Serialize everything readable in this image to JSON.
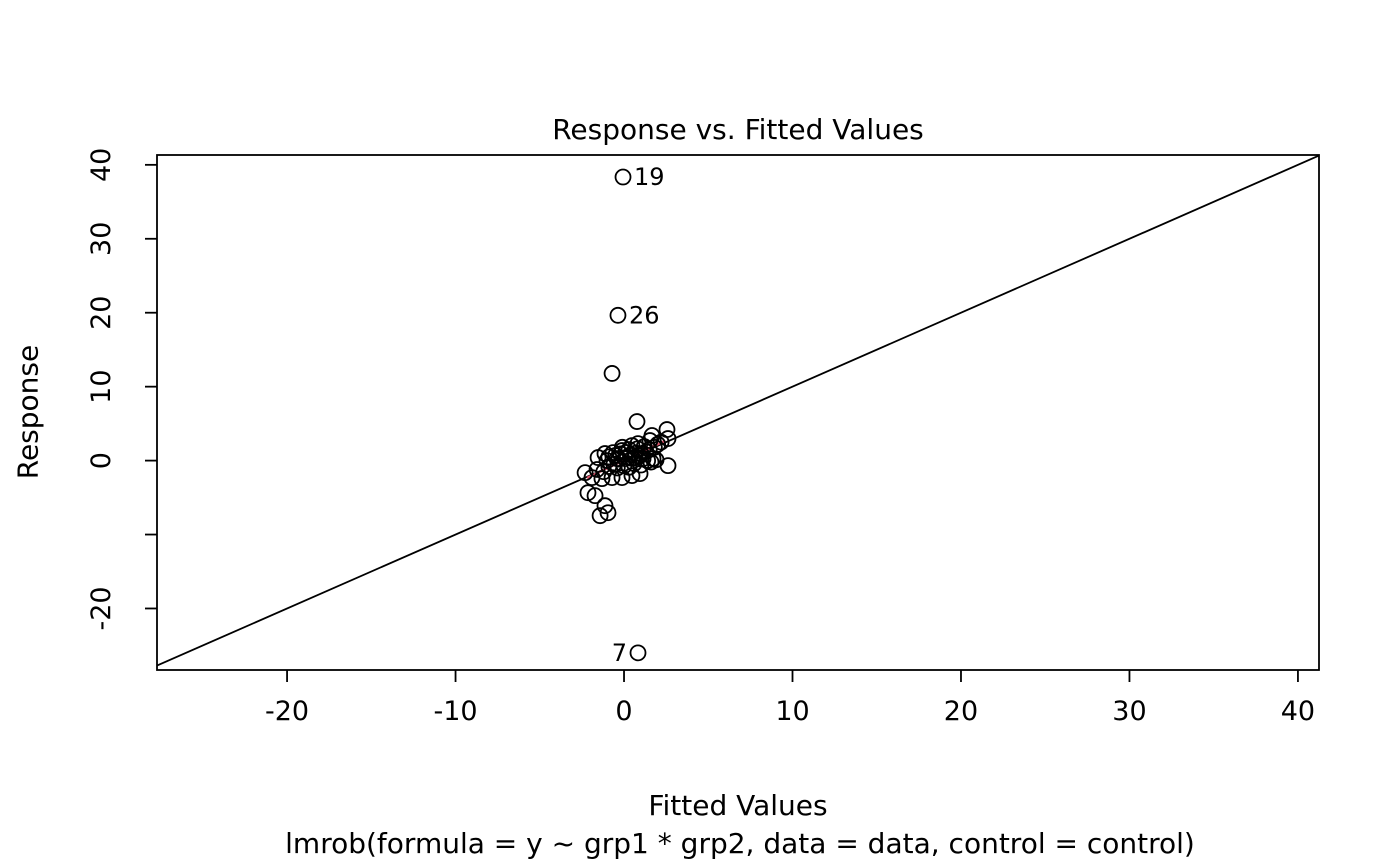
{
  "chart_data": {
    "type": "scatter",
    "title": "Response vs. Fitted Values",
    "xlabel": "Fitted Values",
    "ylabel": "Response",
    "subtitle": "lmrob(formula = y ~ grp1 * grp2, data = data, control = control)",
    "xlim": [
      -27.72,
      41.25
    ],
    "ylim": [
      -28.32,
      41.33
    ],
    "grid": false,
    "legend": "none",
    "x_ticks": [
      {
        "v": -20,
        "label": "-20"
      },
      {
        "v": -10,
        "label": "-10"
      },
      {
        "v": 0,
        "label": "0"
      },
      {
        "v": 10,
        "label": "10"
      },
      {
        "v": 20,
        "label": "20"
      },
      {
        "v": 30,
        "label": "30"
      },
      {
        "v": 40,
        "label": "40"
      }
    ],
    "y_ticks": [
      {
        "v": 40,
        "label": "40"
      },
      {
        "v": 30,
        "label": "30"
      },
      {
        "v": 20,
        "label": "20"
      },
      {
        "v": 10,
        "label": "10"
      },
      {
        "v": 0,
        "label": "0"
      },
      {
        "v": -10,
        "label": ""
      },
      {
        "v": -20,
        "label": "-20"
      }
    ],
    "identity_line": {
      "slope": 1,
      "intercept": 0,
      "color": "#000000"
    },
    "fit_segment": {
      "x1": -2.2,
      "y1": -2.35,
      "x2": 2.45,
      "y2": 2.7,
      "color": "#DF536B"
    },
    "labeled_points": [
      {
        "x": -0.06,
        "y": 38.35,
        "label": "19",
        "side": "right"
      },
      {
        "x": -0.36,
        "y": 19.65,
        "label": "26",
        "side": "right"
      },
      {
        "x": 0.83,
        "y": -26.0,
        "label": "7",
        "side": "left"
      }
    ],
    "points": [
      [
        -0.71,
        11.79
      ],
      [
        0.77,
        5.28
      ],
      [
        1.66,
        3.39
      ],
      [
        2.55,
        4.2
      ],
      [
        2.61,
        2.98
      ],
      [
        1.54,
        2.71
      ],
      [
        0.83,
        2.3
      ],
      [
        0.47,
        2.03
      ],
      [
        -0.12,
        1.36
      ],
      [
        -0.65,
        1.08
      ],
      [
        -1.13,
        0.95
      ],
      [
        -1.54,
        0.41
      ],
      [
        -1.01,
        0.0
      ],
      [
        -0.42,
        0.27
      ],
      [
        0.06,
        0.27
      ],
      [
        0.65,
        0.41
      ],
      [
        1.13,
        0.27
      ],
      [
        1.72,
        0.27
      ],
      [
        2.61,
        -0.68
      ],
      [
        -2.31,
        -1.63
      ],
      [
        -1.9,
        -2.3
      ],
      [
        -1.31,
        -2.44
      ],
      [
        -0.71,
        -2.3
      ],
      [
        -0.12,
        -2.3
      ],
      [
        0.47,
        -2.03
      ],
      [
        0.95,
        -1.76
      ],
      [
        -2.14,
        -4.34
      ],
      [
        -1.72,
        -4.74
      ],
      [
        -1.13,
        -6.1
      ],
      [
        -0.95,
        -7.05
      ],
      [
        -1.42,
        -7.45
      ],
      [
        -0.9,
        0.5
      ],
      [
        -0.5,
        0.7
      ],
      [
        -0.2,
        0.9
      ],
      [
        0.1,
        1.1
      ],
      [
        0.4,
        0.8
      ],
      [
        0.7,
        1.0
      ],
      [
        1.0,
        0.9
      ],
      [
        1.3,
        1.2
      ],
      [
        0.2,
        0.5
      ],
      [
        -0.3,
        0.2
      ],
      [
        0.5,
        0.3
      ],
      [
        0.9,
        0.6
      ],
      [
        1.5,
        1.5
      ],
      [
        1.8,
        1.8
      ],
      [
        2.0,
        2.2
      ],
      [
        1.2,
        1.9
      ],
      [
        0.8,
        1.6
      ],
      [
        0.3,
        1.5
      ],
      [
        -0.1,
        1.8
      ],
      [
        -0.6,
        -0.5
      ],
      [
        -0.9,
        -0.8
      ],
      [
        -0.4,
        -1.0
      ],
      [
        0.0,
        -0.7
      ],
      [
        0.3,
        -0.9
      ],
      [
        0.6,
        -0.4
      ],
      [
        1.0,
        -0.6
      ],
      [
        1.6,
        -0.2
      ],
      [
        1.9,
        0.1
      ],
      [
        2.2,
        2.5
      ],
      [
        1.4,
        0.0
      ],
      [
        -1.6,
        -1.2
      ],
      [
        -1.2,
        -1.5
      ]
    ],
    "point_style": {
      "marker": "open-circle",
      "radius": 7.5,
      "stroke": "#000000",
      "stroke_width": 1.8
    }
  }
}
